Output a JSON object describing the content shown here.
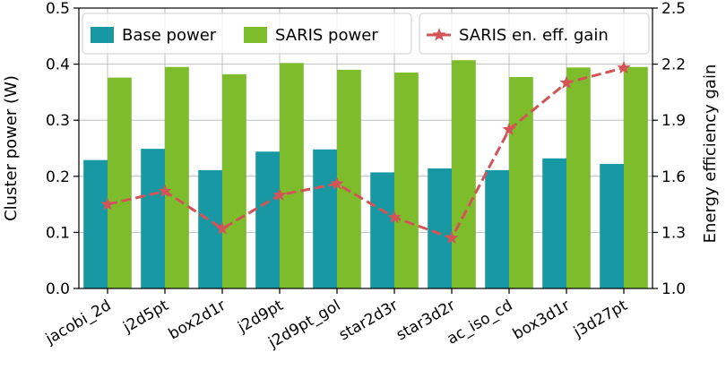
{
  "chart_data": {
    "type": "bar",
    "categories": [
      "jacobi_2d",
      "j2d5pt",
      "box2d1r",
      "j2d9pt",
      "j2d9pt_gol",
      "star2d3r",
      "star3d2r",
      "ac_iso_cd",
      "box3d1r",
      "j3d27pt"
    ],
    "series": [
      {
        "name": "Base power",
        "axis": "left",
        "kind": "bar",
        "color": "#1798a3",
        "values": [
          0.229,
          0.249,
          0.211,
          0.244,
          0.248,
          0.207,
          0.214,
          0.211,
          0.232,
          0.222
        ]
      },
      {
        "name": "SARIS power",
        "axis": "left",
        "kind": "bar",
        "color": "#7dbd2c",
        "values": [
          0.376,
          0.395,
          0.382,
          0.402,
          0.39,
          0.385,
          0.407,
          0.377,
          0.394,
          0.395
        ]
      },
      {
        "name": "SARIS en. eff. gain",
        "axis": "right",
        "kind": "line",
        "color": "#d35457",
        "values": [
          1.45,
          1.52,
          1.32,
          1.5,
          1.56,
          1.38,
          1.27,
          1.85,
          2.1,
          2.18
        ]
      }
    ],
    "ylabel": "Cluster power (W)",
    "ylim": [
      0,
      0.5
    ],
    "yticks": [
      "0.0",
      "0.1",
      "0.2",
      "0.3",
      "0.4",
      "0.5"
    ],
    "y2label": "Energy efficiency gain",
    "y2lim": [
      1.0,
      2.5
    ],
    "y2ticks": [
      "1.0",
      "1.3",
      "1.6",
      "1.9",
      "2.2",
      "2.5"
    ],
    "grid": true,
    "legend_placement": "top"
  }
}
